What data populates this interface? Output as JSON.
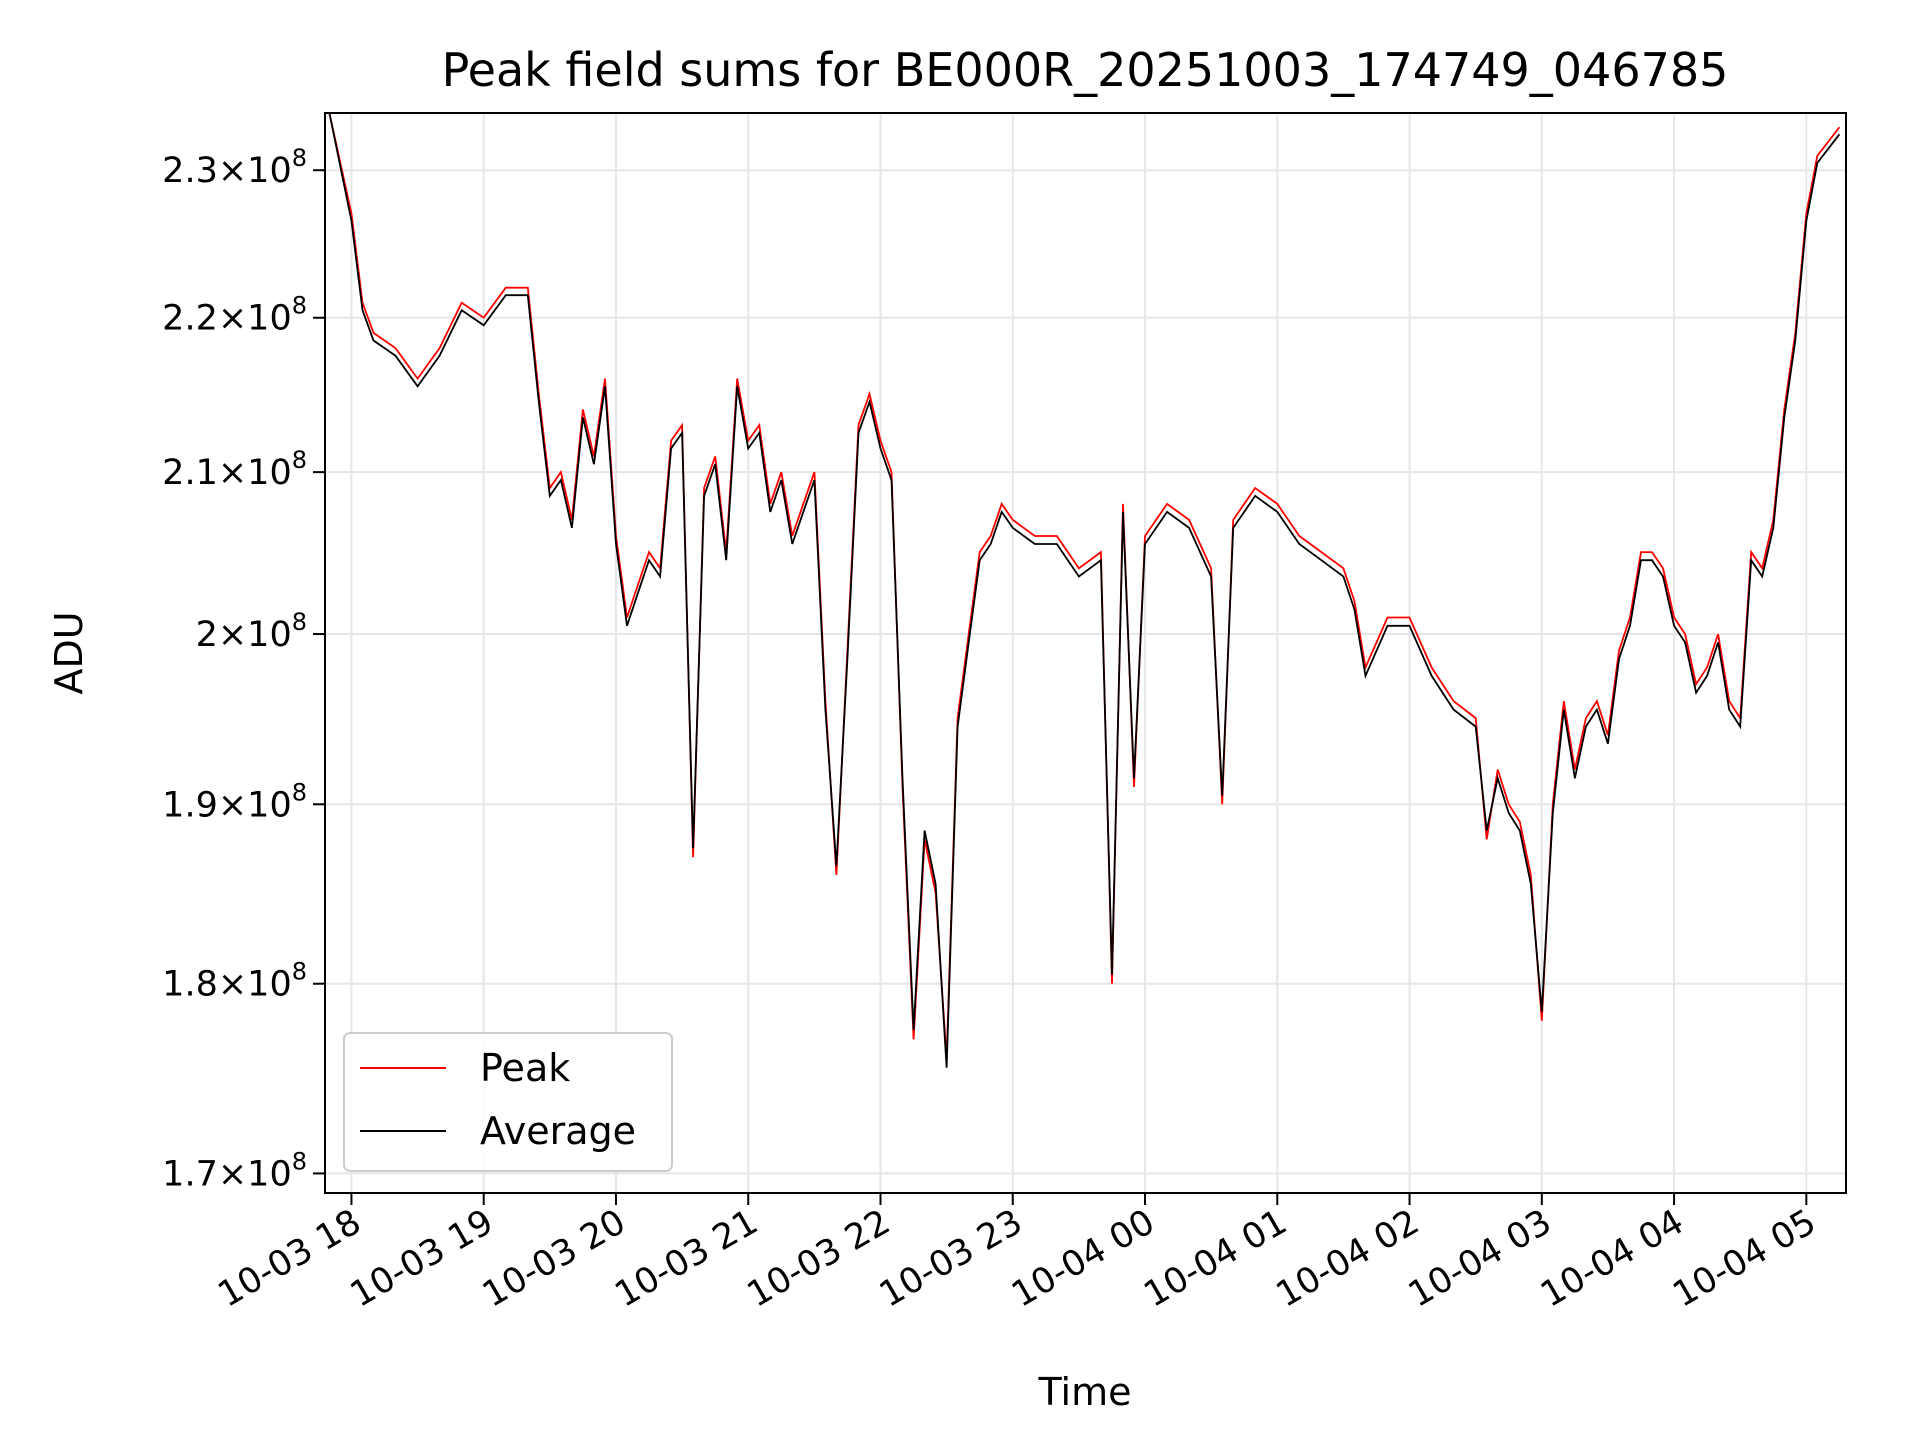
{
  "chart_data": {
    "type": "line",
    "title": "Peak field sums for BE000R_20251003_174749_046785",
    "xlabel": "Time",
    "ylabel": "ADU",
    "y_scale": "log",
    "x_range": [
      "2025-10-03 17:48",
      "2025-10-04 05:18"
    ],
    "ylim": [
      169000000,
      234000000
    ],
    "grid": true,
    "legend": {
      "location": "lower-left"
    },
    "colors": {
      "Peak": "#ff0000",
      "Average": "#000000",
      "grid": "#e6e6e6"
    },
    "x_ticks": [
      {
        "value": "2025-10-03 18:00",
        "label": "10-03 18"
      },
      {
        "value": "2025-10-03 19:00",
        "label": "10-03 19"
      },
      {
        "value": "2025-10-03 20:00",
        "label": "10-03 20"
      },
      {
        "value": "2025-10-03 21:00",
        "label": "10-03 21"
      },
      {
        "value": "2025-10-03 22:00",
        "label": "10-03 22"
      },
      {
        "value": "2025-10-03 23:00",
        "label": "10-03 23"
      },
      {
        "value": "2025-10-04 00:00",
        "label": "10-04 00"
      },
      {
        "value": "2025-10-04 01:00",
        "label": "10-04 01"
      },
      {
        "value": "2025-10-04 02:00",
        "label": "10-04 02"
      },
      {
        "value": "2025-10-04 03:00",
        "label": "10-04 03"
      },
      {
        "value": "2025-10-04 04:00",
        "label": "10-04 04"
      },
      {
        "value": "2025-10-04 05:00",
        "label": "10-04 05"
      }
    ],
    "y_ticks": [
      {
        "value": 170000000,
        "mantissa": "1.7",
        "exponent": "8"
      },
      {
        "value": 180000000,
        "mantissa": "1.8",
        "exponent": "8"
      },
      {
        "value": 190000000,
        "mantissa": "1.9",
        "exponent": "8"
      },
      {
        "value": 200000000,
        "mantissa": "2",
        "exponent": "8"
      },
      {
        "value": 210000000,
        "mantissa": "2.1",
        "exponent": "8"
      },
      {
        "value": 220000000,
        "mantissa": "2.2",
        "exponent": "8"
      },
      {
        "value": 230000000,
        "mantissa": "2.3",
        "exponent": "8"
      }
    ],
    "series": [
      {
        "name": "Peak",
        "x": [
          "2025-10-03 17:50",
          "2025-10-03 18:00",
          "2025-10-03 18:05",
          "2025-10-03 18:10",
          "2025-10-03 18:20",
          "2025-10-03 18:30",
          "2025-10-03 18:35",
          "2025-10-03 18:40",
          "2025-10-03 18:50",
          "2025-10-03 19:00",
          "2025-10-03 19:10",
          "2025-10-03 19:20",
          "2025-10-03 19:25",
          "2025-10-03 19:30",
          "2025-10-03 19:35",
          "2025-10-03 19:40",
          "2025-10-03 19:45",
          "2025-10-03 19:50",
          "2025-10-03 19:55",
          "2025-10-03 20:00",
          "2025-10-03 20:05",
          "2025-10-03 20:10",
          "2025-10-03 20:15",
          "2025-10-03 20:20",
          "2025-10-03 20:25",
          "2025-10-03 20:30",
          "2025-10-03 20:35",
          "2025-10-03 20:40",
          "2025-10-03 20:45",
          "2025-10-03 20:50",
          "2025-10-03 20:55",
          "2025-10-03 21:00",
          "2025-10-03 21:05",
          "2025-10-03 21:10",
          "2025-10-03 21:15",
          "2025-10-03 21:20",
          "2025-10-03 21:25",
          "2025-10-03 21:30",
          "2025-10-03 21:35",
          "2025-10-03 21:40",
          "2025-10-03 21:45",
          "2025-10-03 21:50",
          "2025-10-03 21:55",
          "2025-10-03 22:00",
          "2025-10-03 22:05",
          "2025-10-03 22:10",
          "2025-10-03 22:15",
          "2025-10-03 22:20",
          "2025-10-03 22:25",
          "2025-10-03 22:30",
          "2025-10-03 22:35",
          "2025-10-03 22:40",
          "2025-10-03 22:45",
          "2025-10-03 22:50",
          "2025-10-03 22:55",
          "2025-10-03 23:00",
          "2025-10-03 23:10",
          "2025-10-03 23:20",
          "2025-10-03 23:30",
          "2025-10-03 23:40",
          "2025-10-03 23:45",
          "2025-10-03 23:50",
          "2025-10-03 23:55",
          "2025-10-04 00:00",
          "2025-10-04 00:10",
          "2025-10-04 00:20",
          "2025-10-04 00:30",
          "2025-10-04 00:35",
          "2025-10-04 00:40",
          "2025-10-04 00:50",
          "2025-10-04 01:00",
          "2025-10-04 01:10",
          "2025-10-04 01:20",
          "2025-10-04 01:30",
          "2025-10-04 01:35",
          "2025-10-04 01:40",
          "2025-10-04 01:50",
          "2025-10-04 02:00",
          "2025-10-04 02:10",
          "2025-10-04 02:20",
          "2025-10-04 02:30",
          "2025-10-04 02:35",
          "2025-10-04 02:40",
          "2025-10-04 02:45",
          "2025-10-04 02:50",
          "2025-10-04 02:55",
          "2025-10-04 03:00",
          "2025-10-04 03:05",
          "2025-10-04 03:10",
          "2025-10-04 03:15",
          "2025-10-04 03:20",
          "2025-10-04 03:25",
          "2025-10-04 03:30",
          "2025-10-04 03:35",
          "2025-10-04 03:40",
          "2025-10-04 03:45",
          "2025-10-04 03:50",
          "2025-10-04 03:55",
          "2025-10-04 04:00",
          "2025-10-04 04:05",
          "2025-10-04 04:10",
          "2025-10-04 04:15",
          "2025-10-04 04:20",
          "2025-10-04 04:25",
          "2025-10-04 04:30",
          "2025-10-04 04:35",
          "2025-10-04 04:40",
          "2025-10-04 04:45",
          "2025-10-04 04:50",
          "2025-10-04 04:55",
          "2025-10-04 05:00",
          "2025-10-04 05:05",
          "2025-10-04 05:10",
          "2025-10-04 05:15"
        ],
        "y": [
          234000000,
          227000000,
          221000000,
          219000000,
          218000000,
          216000000,
          217000000,
          218000000,
          221000000,
          220000000,
          222000000,
          222000000,
          215000000,
          209000000,
          210000000,
          207000000,
          214000000,
          211000000,
          216000000,
          206000000,
          201000000,
          203000000,
          205000000,
          204000000,
          212000000,
          213000000,
          187000000,
          209000000,
          211000000,
          205000000,
          216000000,
          212000000,
          213000000,
          208000000,
          210000000,
          206000000,
          208000000,
          210000000,
          196000000,
          186000000,
          199000000,
          213000000,
          215000000,
          212000000,
          210000000,
          191000000,
          177000000,
          188000000,
          185000000,
          176000000,
          195000000,
          200000000,
          205000000,
          206000000,
          208000000,
          207000000,
          206000000,
          206000000,
          204000000,
          205000000,
          180000000,
          208000000,
          191000000,
          206000000,
          208000000,
          207000000,
          204000000,
          190000000,
          207000000,
          209000000,
          208000000,
          206000000,
          205000000,
          204000000,
          202000000,
          198000000,
          201000000,
          201000000,
          198000000,
          196000000,
          195000000,
          188000000,
          192000000,
          190000000,
          189000000,
          186000000,
          178000000,
          190000000,
          196000000,
          192000000,
          195000000,
          196000000,
          194000000,
          199000000,
          201000000,
          205000000,
          205000000,
          204000000,
          201000000,
          200000000,
          197000000,
          198000000,
          200000000,
          196000000,
          195000000,
          205000000,
          204000000,
          207000000,
          214000000,
          219000000,
          227000000,
          231000000,
          232000000,
          233000000
        ]
      },
      {
        "name": "Average",
        "x": [
          "2025-10-03 17:50",
          "2025-10-03 18:00",
          "2025-10-03 18:05",
          "2025-10-03 18:10",
          "2025-10-03 18:20",
          "2025-10-03 18:30",
          "2025-10-03 18:35",
          "2025-10-03 18:40",
          "2025-10-03 18:50",
          "2025-10-03 19:00",
          "2025-10-03 19:10",
          "2025-10-03 19:20",
          "2025-10-03 19:25",
          "2025-10-03 19:30",
          "2025-10-03 19:35",
          "2025-10-03 19:40",
          "2025-10-03 19:45",
          "2025-10-03 19:50",
          "2025-10-03 19:55",
          "2025-10-03 20:00",
          "2025-10-03 20:05",
          "2025-10-03 20:10",
          "2025-10-03 20:15",
          "2025-10-03 20:20",
          "2025-10-03 20:25",
          "2025-10-03 20:30",
          "2025-10-03 20:35",
          "2025-10-03 20:40",
          "2025-10-03 20:45",
          "2025-10-03 20:50",
          "2025-10-03 20:55",
          "2025-10-03 21:00",
          "2025-10-03 21:05",
          "2025-10-03 21:10",
          "2025-10-03 21:15",
          "2025-10-03 21:20",
          "2025-10-03 21:25",
          "2025-10-03 21:30",
          "2025-10-03 21:35",
          "2025-10-03 21:40",
          "2025-10-03 21:45",
          "2025-10-03 21:50",
          "2025-10-03 21:55",
          "2025-10-03 22:00",
          "2025-10-03 22:05",
          "2025-10-03 22:10",
          "2025-10-03 22:15",
          "2025-10-03 22:20",
          "2025-10-03 22:25",
          "2025-10-03 22:30",
          "2025-10-03 22:35",
          "2025-10-03 22:40",
          "2025-10-03 22:45",
          "2025-10-03 22:50",
          "2025-10-03 22:55",
          "2025-10-03 23:00",
          "2025-10-03 23:10",
          "2025-10-03 23:20",
          "2025-10-03 23:30",
          "2025-10-03 23:40",
          "2025-10-03 23:45",
          "2025-10-03 23:50",
          "2025-10-03 23:55",
          "2025-10-04 00:00",
          "2025-10-04 00:10",
          "2025-10-04 00:20",
          "2025-10-04 00:30",
          "2025-10-04 00:35",
          "2025-10-04 00:40",
          "2025-10-04 00:50",
          "2025-10-04 01:00",
          "2025-10-04 01:10",
          "2025-10-04 01:20",
          "2025-10-04 01:30",
          "2025-10-04 01:35",
          "2025-10-04 01:40",
          "2025-10-04 01:50",
          "2025-10-04 02:00",
          "2025-10-04 02:10",
          "2025-10-04 02:20",
          "2025-10-04 02:30",
          "2025-10-04 02:35",
          "2025-10-04 02:40",
          "2025-10-04 02:45",
          "2025-10-04 02:50",
          "2025-10-04 02:55",
          "2025-10-04 03:00",
          "2025-10-04 03:05",
          "2025-10-04 03:10",
          "2025-10-04 03:15",
          "2025-10-04 03:20",
          "2025-10-04 03:25",
          "2025-10-04 03:30",
          "2025-10-04 03:35",
          "2025-10-04 03:40",
          "2025-10-04 03:45",
          "2025-10-04 03:50",
          "2025-10-04 03:55",
          "2025-10-04 04:00",
          "2025-10-04 04:05",
          "2025-10-04 04:10",
          "2025-10-04 04:15",
          "2025-10-04 04:20",
          "2025-10-04 04:25",
          "2025-10-04 04:30",
          "2025-10-04 04:35",
          "2025-10-04 04:40",
          "2025-10-04 04:45",
          "2025-10-04 04:50",
          "2025-10-04 04:55",
          "2025-10-04 05:00",
          "2025-10-04 05:05",
          "2025-10-04 05:10",
          "2025-10-04 05:15"
        ],
        "y": [
          234000000,
          226500000,
          220500000,
          218500000,
          217500000,
          215500000,
          216500000,
          217500000,
          220500000,
          219500000,
          221500000,
          221500000,
          214500000,
          208500000,
          209500000,
          206500000,
          213500000,
          210500000,
          215500000,
          205500000,
          200500000,
          202500000,
          204500000,
          203500000,
          211500000,
          212500000,
          187500000,
          208500000,
          210500000,
          204500000,
          215500000,
          211500000,
          212500000,
          207500000,
          209500000,
          205500000,
          207500000,
          209500000,
          195500000,
          186500000,
          198500000,
          212500000,
          214500000,
          211500000,
          209500000,
          191500000,
          177500000,
          188500000,
          185500000,
          175500000,
          194500000,
          199500000,
          204500000,
          205500000,
          207500000,
          206500000,
          205500000,
          205500000,
          203500000,
          204500000,
          180500000,
          207500000,
          191500000,
          205500000,
          207500000,
          206500000,
          203500000,
          190500000,
          206500000,
          208500000,
          207500000,
          205500000,
          204500000,
          203500000,
          201500000,
          197500000,
          200500000,
          200500000,
          197500000,
          195500000,
          194500000,
          188500000,
          191500000,
          189500000,
          188500000,
          185500000,
          178500000,
          189500000,
          195500000,
          191500000,
          194500000,
          195500000,
          193500000,
          198500000,
          200500000,
          204500000,
          204500000,
          203500000,
          200500000,
          199500000,
          196500000,
          197500000,
          199500000,
          195500000,
          194500000,
          204500000,
          203500000,
          206500000,
          213500000,
          218500000,
          226500000,
          230500000,
          231500000,
          232500000
        ]
      }
    ]
  }
}
